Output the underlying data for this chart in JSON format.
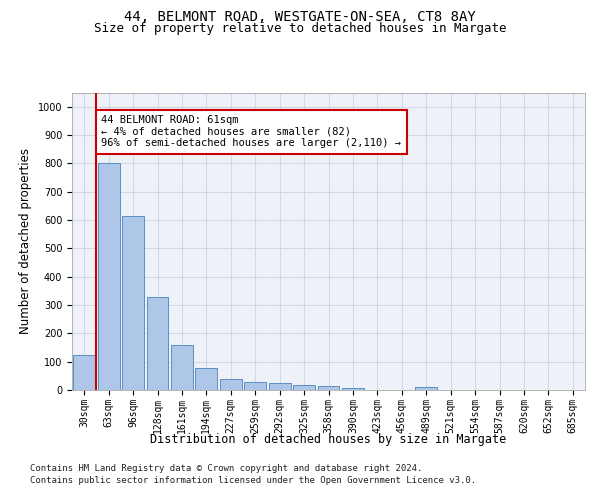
{
  "title_line1": "44, BELMONT ROAD, WESTGATE-ON-SEA, CT8 8AY",
  "title_line2": "Size of property relative to detached houses in Margate",
  "xlabel": "Distribution of detached houses by size in Margate",
  "ylabel": "Number of detached properties",
  "categories": [
    "30sqm",
    "63sqm",
    "96sqm",
    "128sqm",
    "161sqm",
    "194sqm",
    "227sqm",
    "259sqm",
    "292sqm",
    "325sqm",
    "358sqm",
    "390sqm",
    "423sqm",
    "456sqm",
    "489sqm",
    "521sqm",
    "554sqm",
    "587sqm",
    "620sqm",
    "652sqm",
    "685sqm"
  ],
  "values": [
    125,
    800,
    615,
    328,
    160,
    78,
    40,
    28,
    23,
    18,
    15,
    8,
    0,
    0,
    10,
    0,
    0,
    0,
    0,
    0,
    0
  ],
  "bar_color": "#aec6e8",
  "bar_edge_color": "#5a8fc2",
  "vline_color": "#cc0000",
  "vline_x": 0.5,
  "annotation_text": "44 BELMONT ROAD: 61sqm\n← 4% of detached houses are smaller (82)\n96% of semi-detached houses are larger (2,110) →",
  "annotation_box_facecolor": "#ffffff",
  "annotation_box_edgecolor": "#cc0000",
  "annotation_fontsize": 7.5,
  "ylim": [
    0,
    1050
  ],
  "yticks": [
    0,
    100,
    200,
    300,
    400,
    500,
    600,
    700,
    800,
    900,
    1000
  ],
  "grid_color": "#d0d8e8",
  "bg_color": "#eef2f8",
  "footer_line1": "Contains HM Land Registry data © Crown copyright and database right 2024.",
  "footer_line2": "Contains public sector information licensed under the Open Government Licence v3.0.",
  "title_fontsize": 10,
  "subtitle_fontsize": 9,
  "axis_label_fontsize": 8.5,
  "tick_fontsize": 7,
  "footer_fontsize": 6.5
}
